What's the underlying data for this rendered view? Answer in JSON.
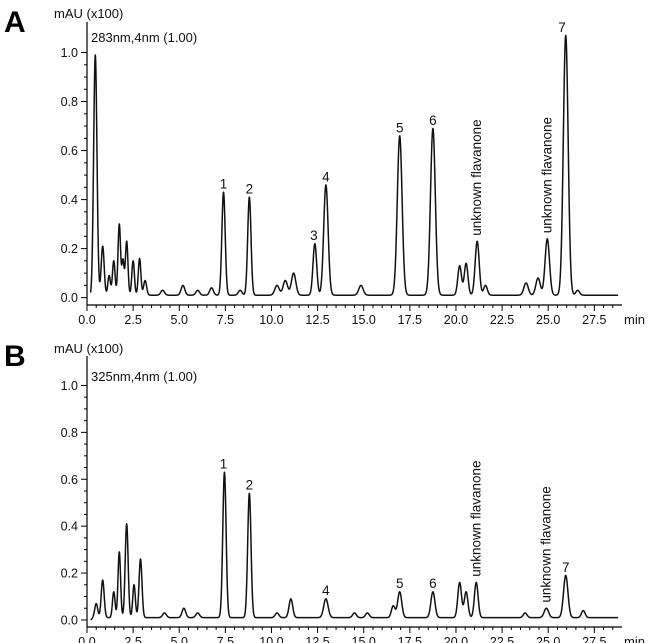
{
  "chart_data": [
    {
      "type": "line",
      "panel": "A",
      "annotation": "283nm,4nm (1.00)",
      "ylabel": "mAU (x100)",
      "xlabel": "min",
      "xlim": [
        0,
        29
      ],
      "ylim": [
        -0.03,
        1.1
      ],
      "x_ticks": [
        0.0,
        2.5,
        5.0,
        7.5,
        10.0,
        12.5,
        15.0,
        17.5,
        20.0,
        22.5,
        25.0,
        27.5
      ],
      "x_tick_labels": [
        "0.0",
        "2.5",
        "5.0",
        "7.5",
        "10.0",
        "12.5",
        "15.0",
        "17.5",
        "20.0",
        "22.5",
        "25.0",
        "27.5"
      ],
      "y_ticks": [
        0.0,
        0.2,
        0.4,
        0.6,
        0.8,
        1.0
      ],
      "y_tick_labels": [
        "0.0",
        "0.2",
        "0.4",
        "0.6",
        "0.8",
        "1.0"
      ],
      "baseline": 0.01,
      "peaks": [
        {
          "t": 0.45,
          "h": 0.98,
          "w": 0.09
        },
        {
          "t": 0.85,
          "h": 0.2,
          "w": 0.08
        },
        {
          "t": 1.2,
          "h": 0.08,
          "w": 0.07
        },
        {
          "t": 1.45,
          "h": 0.14,
          "w": 0.07
        },
        {
          "t": 1.75,
          "h": 0.29,
          "w": 0.07
        },
        {
          "t": 1.95,
          "h": 0.14,
          "w": 0.06
        },
        {
          "t": 2.15,
          "h": 0.22,
          "w": 0.07
        },
        {
          "t": 2.5,
          "h": 0.14,
          "w": 0.07
        },
        {
          "t": 2.85,
          "h": 0.15,
          "w": 0.07
        },
        {
          "t": 3.15,
          "h": 0.06,
          "w": 0.08
        },
        {
          "t": 4.1,
          "h": 0.02,
          "w": 0.1
        },
        {
          "t": 5.2,
          "h": 0.04,
          "w": 0.1
        },
        {
          "t": 6.0,
          "h": 0.02,
          "w": 0.1
        },
        {
          "t": 6.75,
          "h": 0.03,
          "w": 0.1
        },
        {
          "t": 7.4,
          "h": 0.42,
          "w": 0.09
        },
        {
          "t": 8.3,
          "h": 0.02,
          "w": 0.1
        },
        {
          "t": 8.8,
          "h": 0.4,
          "w": 0.09
        },
        {
          "t": 10.3,
          "h": 0.04,
          "w": 0.12
        },
        {
          "t": 10.75,
          "h": 0.06,
          "w": 0.12
        },
        {
          "t": 11.2,
          "h": 0.09,
          "w": 0.12
        },
        {
          "t": 12.35,
          "h": 0.21,
          "w": 0.1
        },
        {
          "t": 12.95,
          "h": 0.45,
          "w": 0.12
        },
        {
          "t": 14.85,
          "h": 0.04,
          "w": 0.12
        },
        {
          "t": 16.95,
          "h": 0.65,
          "w": 0.13
        },
        {
          "t": 18.75,
          "h": 0.68,
          "w": 0.13
        },
        {
          "t": 20.2,
          "h": 0.12,
          "w": 0.1
        },
        {
          "t": 20.55,
          "h": 0.13,
          "w": 0.1
        },
        {
          "t": 21.15,
          "h": 0.22,
          "w": 0.11
        },
        {
          "t": 21.6,
          "h": 0.04,
          "w": 0.1
        },
        {
          "t": 23.8,
          "h": 0.05,
          "w": 0.12
        },
        {
          "t": 24.45,
          "h": 0.07,
          "w": 0.12
        },
        {
          "t": 24.95,
          "h": 0.23,
          "w": 0.12
        },
        {
          "t": 25.95,
          "h": 1.06,
          "w": 0.13
        },
        {
          "t": 26.6,
          "h": 0.02,
          "w": 0.1
        }
      ],
      "peak_labels": [
        {
          "text": "1",
          "t": 7.4,
          "h": 0.42,
          "orient": "h"
        },
        {
          "text": "2",
          "t": 8.8,
          "h": 0.4,
          "orient": "h"
        },
        {
          "text": "3",
          "t": 12.3,
          "h": 0.21,
          "orient": "h"
        },
        {
          "text": "4",
          "t": 12.95,
          "h": 0.45,
          "orient": "h"
        },
        {
          "text": "5",
          "t": 16.95,
          "h": 0.65,
          "orient": "h"
        },
        {
          "text": "6",
          "t": 18.75,
          "h": 0.68,
          "orient": "h"
        },
        {
          "text": "unknown flavanone",
          "t": 21.15,
          "h": 0.22,
          "orient": "v"
        },
        {
          "text": "unknown flavanone",
          "t": 24.95,
          "h": 0.23,
          "orient": "v"
        },
        {
          "text": "7",
          "t": 25.75,
          "h": 1.06,
          "orient": "h"
        }
      ]
    },
    {
      "type": "line",
      "panel": "B",
      "annotation": "325nm,4nm (1.00)",
      "ylabel": "mAU (x100)",
      "xlabel": "min",
      "xlim": [
        0,
        29
      ],
      "ylim": [
        -0.03,
        1.1
      ],
      "x_ticks": [
        0.0,
        2.5,
        5.0,
        7.5,
        10.0,
        12.5,
        15.0,
        17.5,
        20.0,
        22.5,
        25.0,
        27.5
      ],
      "x_tick_labels": [
        "0.0",
        "2.5",
        "5.0",
        "7.5",
        "10.0",
        "12.5",
        "15.0",
        "17.5",
        "20.0",
        "22.5",
        "25.0",
        "27.5"
      ],
      "y_ticks": [
        0.0,
        0.2,
        0.4,
        0.6,
        0.8,
        1.0
      ],
      "y_tick_labels": [
        "0.0",
        "0.2",
        "0.4",
        "0.6",
        "0.8",
        "1.0"
      ],
      "baseline": 0.01,
      "peaks": [
        {
          "t": 0.5,
          "h": 0.06,
          "w": 0.08
        },
        {
          "t": 0.85,
          "h": 0.16,
          "w": 0.08
        },
        {
          "t": 1.45,
          "h": 0.11,
          "w": 0.07
        },
        {
          "t": 1.75,
          "h": 0.28,
          "w": 0.07
        },
        {
          "t": 2.15,
          "h": 0.4,
          "w": 0.08
        },
        {
          "t": 2.55,
          "h": 0.14,
          "w": 0.07
        },
        {
          "t": 2.9,
          "h": 0.25,
          "w": 0.08
        },
        {
          "t": 4.2,
          "h": 0.02,
          "w": 0.1
        },
        {
          "t": 5.25,
          "h": 0.04,
          "w": 0.1
        },
        {
          "t": 6.0,
          "h": 0.02,
          "w": 0.1
        },
        {
          "t": 7.45,
          "h": 0.62,
          "w": 0.09
        },
        {
          "t": 8.8,
          "h": 0.53,
          "w": 0.09
        },
        {
          "t": 10.3,
          "h": 0.02,
          "w": 0.1
        },
        {
          "t": 11.05,
          "h": 0.08,
          "w": 0.1
        },
        {
          "t": 12.95,
          "h": 0.08,
          "w": 0.12
        },
        {
          "t": 14.5,
          "h": 0.02,
          "w": 0.1
        },
        {
          "t": 15.2,
          "h": 0.02,
          "w": 0.1
        },
        {
          "t": 16.6,
          "h": 0.05,
          "w": 0.1
        },
        {
          "t": 16.95,
          "h": 0.11,
          "w": 0.11
        },
        {
          "t": 18.75,
          "h": 0.11,
          "w": 0.11
        },
        {
          "t": 20.2,
          "h": 0.15,
          "w": 0.1
        },
        {
          "t": 20.55,
          "h": 0.11,
          "w": 0.1
        },
        {
          "t": 21.1,
          "h": 0.15,
          "w": 0.1
        },
        {
          "t": 23.75,
          "h": 0.02,
          "w": 0.1
        },
        {
          "t": 24.9,
          "h": 0.04,
          "w": 0.12
        },
        {
          "t": 25.95,
          "h": 0.18,
          "w": 0.12
        },
        {
          "t": 26.9,
          "h": 0.03,
          "w": 0.1
        }
      ],
      "peak_labels": [
        {
          "text": "1",
          "t": 7.4,
          "h": 0.62,
          "orient": "h"
        },
        {
          "text": "2",
          "t": 8.8,
          "h": 0.53,
          "orient": "h"
        },
        {
          "text": "4",
          "t": 12.95,
          "h": 0.08,
          "orient": "h"
        },
        {
          "text": "5",
          "t": 16.95,
          "h": 0.11,
          "orient": "h"
        },
        {
          "text": "6",
          "t": 18.75,
          "h": 0.11,
          "orient": "h"
        },
        {
          "text": "unknown flavanone",
          "t": 21.1,
          "h": 0.15,
          "orient": "v"
        },
        {
          "text": "unknown flavanone",
          "t": 24.9,
          "h": 0.04,
          "orient": "v"
        },
        {
          "text": "7",
          "t": 25.95,
          "h": 0.18,
          "orient": "h"
        }
      ]
    }
  ]
}
